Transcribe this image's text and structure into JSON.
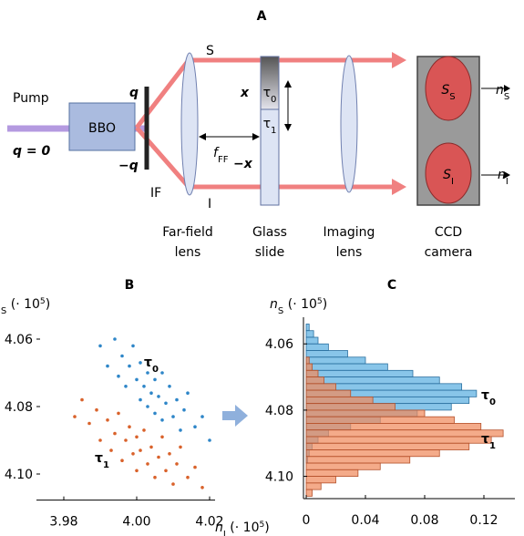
{
  "panel_a": {
    "title": "A",
    "pump": "Pump",
    "q_zero": "q = 0",
    "bbo": "BBO",
    "q_plus": "q",
    "q_minus": "−q",
    "filter": "IF",
    "beam_s": "S",
    "beam_i": "I",
    "far_field_lens": [
      "Far-field",
      "lens"
    ],
    "focal": {
      "base": "f",
      "sub": "FF"
    },
    "x_plus": "x",
    "x_minus": "−x",
    "tau0": {
      "base": "τ",
      "sub": "0"
    },
    "tau1": {
      "base": "τ",
      "sub": "1"
    },
    "glass_slide": [
      "Glass",
      "slide"
    ],
    "imaging_lens": [
      "Imaging",
      "lens"
    ],
    "camera": [
      "CCD",
      "camera"
    ],
    "spot_s": {
      "base": "S",
      "sub": "S"
    },
    "spot_i": {
      "base": "S",
      "sub": "I"
    },
    "out_s": {
      "base": "n",
      "sub": "S"
    },
    "out_i": {
      "base": "n",
      "sub": "I"
    }
  },
  "chart_data": [
    {
      "type": "scatter",
      "title": "B",
      "xlabel": {
        "base": "n",
        "sub": "I",
        "rest": " (· 10",
        "sup": "5",
        "end": ")"
      },
      "ylabel": {
        "base": "n",
        "sub": "S",
        "rest": " (· 10",
        "sup": "5",
        "end": ")"
      },
      "xlim": [
        3.975,
        4.025
      ],
      "ylim": [
        4.05,
        4.108
      ],
      "y_inverted": true,
      "xticks": [
        3.98,
        {
          "value": 4,
          "label": "4.00"
        },
        4.02
      ],
      "yticks": [
        4.06,
        4.08,
        {
          "value": 4.1,
          "label": "4.10"
        }
      ],
      "series": [
        {
          "name": {
            "base": "τ",
            "sub": "0"
          },
          "color": "#2e86c8",
          "x": [
            3.99,
            3.992,
            3.994,
            3.995,
            3.996,
            3.997,
            3.998,
            3.999,
            4.0,
            4.001,
            4.001,
            4.002,
            4.003,
            4.003,
            4.004,
            4.005,
            4.005,
            4.006,
            4.007,
            4.007,
            4.008,
            4.009,
            4.01,
            4.011,
            4.012,
            4.013,
            4.014,
            4.016,
            4.018,
            4.02
          ],
          "values": [
            4.062,
            4.068,
            4.06,
            4.071,
            4.065,
            4.074,
            4.068,
            4.062,
            4.072,
            4.078,
            4.067,
            4.074,
            4.08,
            4.07,
            4.076,
            4.072,
            4.082,
            4.077,
            4.07,
            4.084,
            4.079,
            4.074,
            4.083,
            4.078,
            4.087,
            4.081,
            4.076,
            4.086,
            4.083,
            4.09
          ]
        },
        {
          "name": {
            "base": "τ",
            "sub": "1"
          },
          "color": "#d9622b",
          "x": [
            3.985,
            3.987,
            3.989,
            3.99,
            3.992,
            3.993,
            3.994,
            3.995,
            3.996,
            3.997,
            3.998,
            3.999,
            4.0,
            4.0,
            4.001,
            4.002,
            4.003,
            4.004,
            4.005,
            4.006,
            4.007,
            4.008,
            4.009,
            4.01,
            4.011,
            4.012,
            4.014,
            4.016,
            4.018,
            3.983
          ],
          "values": [
            4.078,
            4.085,
            4.081,
            4.09,
            4.084,
            4.093,
            4.088,
            4.082,
            4.096,
            4.09,
            4.086,
            4.094,
            4.099,
            4.089,
            4.093,
            4.087,
            4.097,
            4.092,
            4.101,
            4.095,
            4.089,
            4.099,
            4.094,
            4.103,
            4.097,
            4.092,
            4.101,
            4.098,
            4.104,
            4.083
          ]
        }
      ]
    },
    {
      "type": "histogram",
      "orientation": "horizontal",
      "title": "C",
      "ylabel": {
        "base": "n",
        "sub": "S",
        "rest": " (· 10",
        "sup": "5",
        "end": ")"
      },
      "bins": [
        4.054,
        4.056,
        4.058,
        4.06,
        4.062,
        4.064,
        4.066,
        4.068,
        4.07,
        4.072,
        4.074,
        4.076,
        4.078,
        4.08,
        4.082,
        4.084,
        4.086,
        4.088,
        4.09,
        4.092,
        4.094,
        4.096,
        4.098,
        4.1,
        4.102,
        4.104,
        4.106
      ],
      "xlim": [
        0,
        0.14
      ],
      "xticks": [
        0,
        0.04,
        0.08,
        0.12
      ],
      "ylim": [
        4.0525,
        4.107
      ],
      "y_inverted": true,
      "yticks": [
        4.06,
        4.08,
        {
          "value": 4.1,
          "label": "4.10"
        }
      ],
      "series": [
        {
          "name": {
            "base": "τ",
            "sub": "0"
          },
          "color": "#5aaee0",
          "edge": "#2a6f9f",
          "values": [
            0.002,
            0.005,
            0.008,
            0.015,
            0.028,
            0.04,
            0.055,
            0.072,
            0.09,
            0.105,
            0.115,
            0.11,
            0.098,
            0.075,
            0.05,
            0.03,
            0.015,
            0.008,
            0.004,
            0.002,
            0.001,
            0,
            0,
            0,
            0,
            0
          ]
        },
        {
          "name": {
            "base": "τ",
            "sub": "1"
          },
          "color": "#f08a5d",
          "edge": "#b4502a",
          "values": [
            0,
            0,
            0,
            0,
            0,
            0.002,
            0.004,
            0.008,
            0.012,
            0.02,
            0.03,
            0.045,
            0.06,
            0.08,
            0.1,
            0.118,
            0.133,
            0.125,
            0.11,
            0.09,
            0.07,
            0.05,
            0.035,
            0.02,
            0.01,
            0.004
          ]
        }
      ]
    }
  ]
}
